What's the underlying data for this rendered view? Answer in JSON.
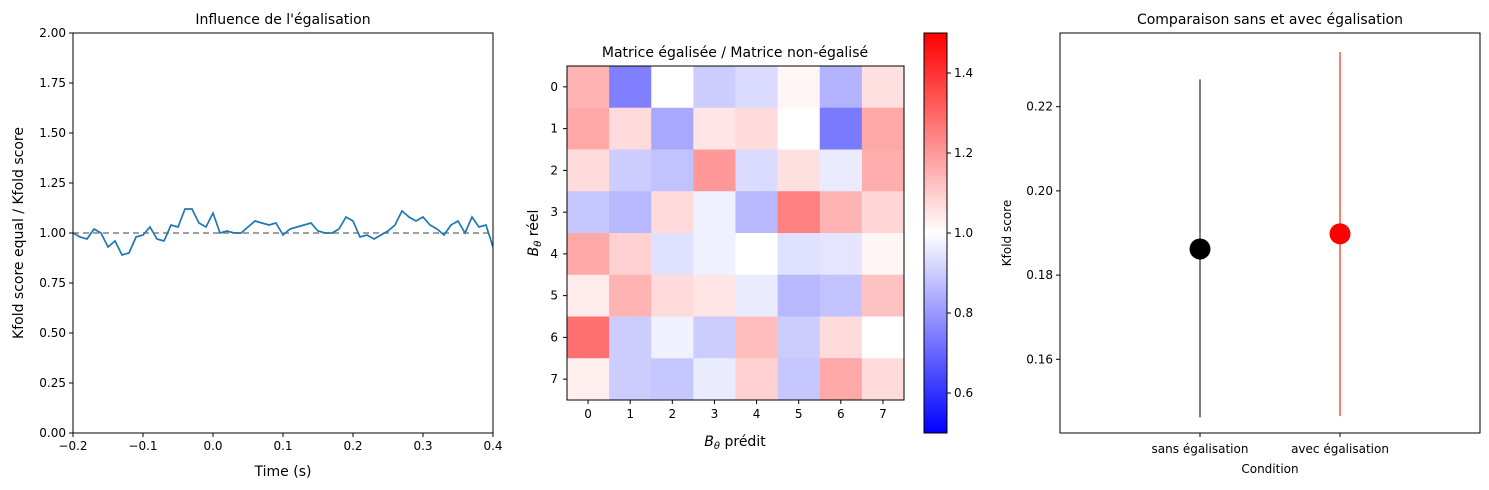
{
  "chart_data": [
    {
      "type": "line",
      "title": "Influence de l'égalisation",
      "xlabel": "Time (s)",
      "ylabel": "Kfold score equal / Kfold score",
      "xlim": [
        -0.2,
        0.4
      ],
      "ylim": [
        0.0,
        2.0
      ],
      "x_ticks": [
        "−0.2",
        "−0.1",
        "0.0",
        "0.1",
        "0.2",
        "0.3",
        "0.4"
      ],
      "y_ticks": [
        "0.00",
        "0.25",
        "0.50",
        "0.75",
        "1.00",
        "1.25",
        "1.50",
        "1.75",
        "2.00"
      ],
      "reference_line": 1.0,
      "series": [
        {
          "color": "#1f77b4",
          "x": [
            -0.2,
            -0.19,
            -0.18,
            -0.17,
            -0.16,
            -0.15,
            -0.14,
            -0.13,
            -0.12,
            -0.11,
            -0.1,
            -0.09,
            -0.08,
            -0.07,
            -0.06,
            -0.05,
            -0.04,
            -0.03,
            -0.02,
            -0.01,
            0.0,
            0.01,
            0.02,
            0.03,
            0.04,
            0.05,
            0.06,
            0.07,
            0.08,
            0.09,
            0.1,
            0.11,
            0.12,
            0.13,
            0.14,
            0.15,
            0.16,
            0.17,
            0.18,
            0.19,
            0.2,
            0.21,
            0.22,
            0.23,
            0.24,
            0.25,
            0.26,
            0.27,
            0.28,
            0.29,
            0.3,
            0.31,
            0.32,
            0.33,
            0.34,
            0.35,
            0.36,
            0.37,
            0.38,
            0.39,
            0.4
          ],
          "y": [
            1.0,
            0.98,
            0.97,
            1.02,
            1.0,
            0.93,
            0.96,
            0.89,
            0.9,
            0.98,
            0.99,
            1.03,
            0.97,
            0.96,
            1.04,
            1.03,
            1.12,
            1.12,
            1.05,
            1.03,
            1.1,
            1.0,
            1.01,
            1.0,
            1.0,
            1.03,
            1.06,
            1.05,
            1.04,
            1.05,
            0.99,
            1.02,
            1.03,
            1.04,
            1.05,
            1.01,
            1.0,
            1.0,
            1.02,
            1.08,
            1.06,
            0.98,
            0.99,
            0.97,
            0.99,
            1.01,
            1.04,
            1.11,
            1.08,
            1.06,
            1.08,
            1.04,
            1.02,
            0.99,
            1.04,
            1.06,
            1.0,
            1.08,
            1.03,
            1.04,
            0.93
          ]
        }
      ]
    },
    {
      "type": "heatmap",
      "title": "Matrice égalisée / Matrice non-égalisé",
      "xlabel": "B_θ prédit",
      "ylabel": "B_θ réel",
      "x_ticks": [
        "0",
        "1",
        "2",
        "3",
        "4",
        "5",
        "6",
        "7"
      ],
      "y_ticks": [
        "0",
        "1",
        "2",
        "3",
        "4",
        "5",
        "6",
        "7"
      ],
      "colormap": "bwr",
      "vmin": 0.5,
      "vmax": 1.5,
      "colorbar_ticks": [
        "0.6",
        "0.8",
        "1.0",
        "1.2",
        "1.4"
      ],
      "values": [
        [
          1.15,
          0.75,
          1.0,
          0.9,
          0.93,
          1.02,
          0.85,
          1.06
        ],
        [
          1.17,
          1.07,
          0.83,
          1.05,
          1.07,
          1.0,
          0.74,
          1.17
        ],
        [
          1.07,
          0.9,
          0.88,
          1.2,
          0.93,
          1.06,
          0.96,
          1.16
        ],
        [
          0.89,
          0.86,
          1.07,
          0.97,
          0.86,
          1.25,
          1.15,
          1.08
        ],
        [
          1.17,
          1.09,
          0.94,
          0.97,
          1.0,
          0.94,
          0.95,
          1.02
        ],
        [
          1.04,
          1.15,
          1.07,
          1.05,
          0.96,
          0.86,
          0.88,
          1.12
        ],
        [
          1.28,
          0.9,
          0.97,
          0.9,
          1.13,
          0.9,
          1.07,
          1.0
        ],
        [
          1.03,
          0.9,
          0.89,
          0.96,
          1.09,
          0.89,
          1.17,
          1.07
        ]
      ]
    },
    {
      "type": "scatter",
      "title": "Comparaison sans et avec égalisation",
      "xlabel": "Condition",
      "ylabel": "Kfold score",
      "categories": [
        "sans égalisation",
        "avec égalisation"
      ],
      "y_ticks": [
        "0.16",
        "0.18",
        "0.20",
        "0.22"
      ],
      "ylim": [
        0.1425,
        0.2375
      ],
      "points": [
        {
          "category": "sans égalisation",
          "y": 0.1862,
          "err_low": 0.1462,
          "err_high": 0.2265,
          "color": "#000000",
          "err_color": "#808080"
        },
        {
          "category": "avec égalisation",
          "y": 0.1898,
          "err_low": 0.1465,
          "err_high": 0.233,
          "color": "#ff0000",
          "err_color": "#fa8072"
        }
      ]
    }
  ]
}
